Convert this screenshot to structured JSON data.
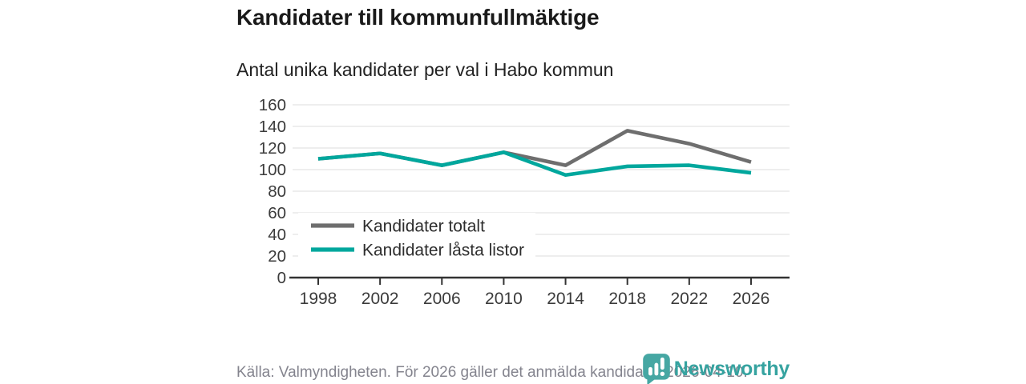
{
  "chart_data": {
    "type": "line",
    "title": "Kandidater till kommunfullmäktige",
    "subtitle": "Antal unika kandidater per val i Habo kommun",
    "categories": [
      "1998",
      "2002",
      "2006",
      "2010",
      "2014",
      "2018",
      "2022",
      "2026"
    ],
    "series": [
      {
        "name": "Kandidater totalt",
        "color": "#6e6e6e",
        "values": [
          110,
          115,
          104,
          116,
          104,
          136,
          124,
          107
        ]
      },
      {
        "name": "Kandidater låsta listor",
        "color": "#00a79d",
        "values": [
          110,
          115,
          104,
          116,
          95,
          103,
          104,
          97
        ]
      }
    ],
    "ylim": [
      0,
      160
    ],
    "ytick_step": 20,
    "grid": true,
    "legend_position": "inside-bottom-left"
  },
  "footer": {
    "source": "Källa: Valmyndigheten. För 2026 gäller det anmälda kandidater 2026-04-10.",
    "brand": "Newsworthy"
  },
  "colors": {
    "grid": "#e3e3e3",
    "axis": "#333333",
    "tick_label": "#3b3b3b",
    "legend_label": "#2e2e2e",
    "legend_bg": "#ffffff",
    "logo_teal": "#46a7a3",
    "logo_text_teal": "#36a3a0"
  }
}
